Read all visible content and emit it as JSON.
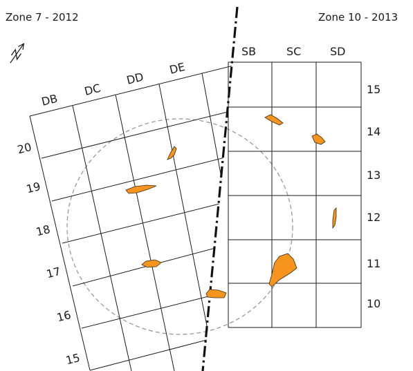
{
  "titles": {
    "left": "Zone 7 - 2012",
    "right": "Zone 10 - 2013"
  },
  "north_arrow": {
    "icon": "north-arrow-icon"
  },
  "zone7": {
    "columns": [
      "DB",
      "DC",
      "DD",
      "DE"
    ],
    "rows": [
      "20",
      "19",
      "18",
      "17",
      "16",
      "15"
    ]
  },
  "zone10": {
    "columns": [
      "SB",
      "SC",
      "SD"
    ],
    "rows": [
      "15",
      "14",
      "13",
      "12",
      "11",
      "10"
    ]
  },
  "colors": {
    "feature_fill": "#f7941d",
    "grid": "#1a1a1a",
    "circle": "#999999"
  }
}
